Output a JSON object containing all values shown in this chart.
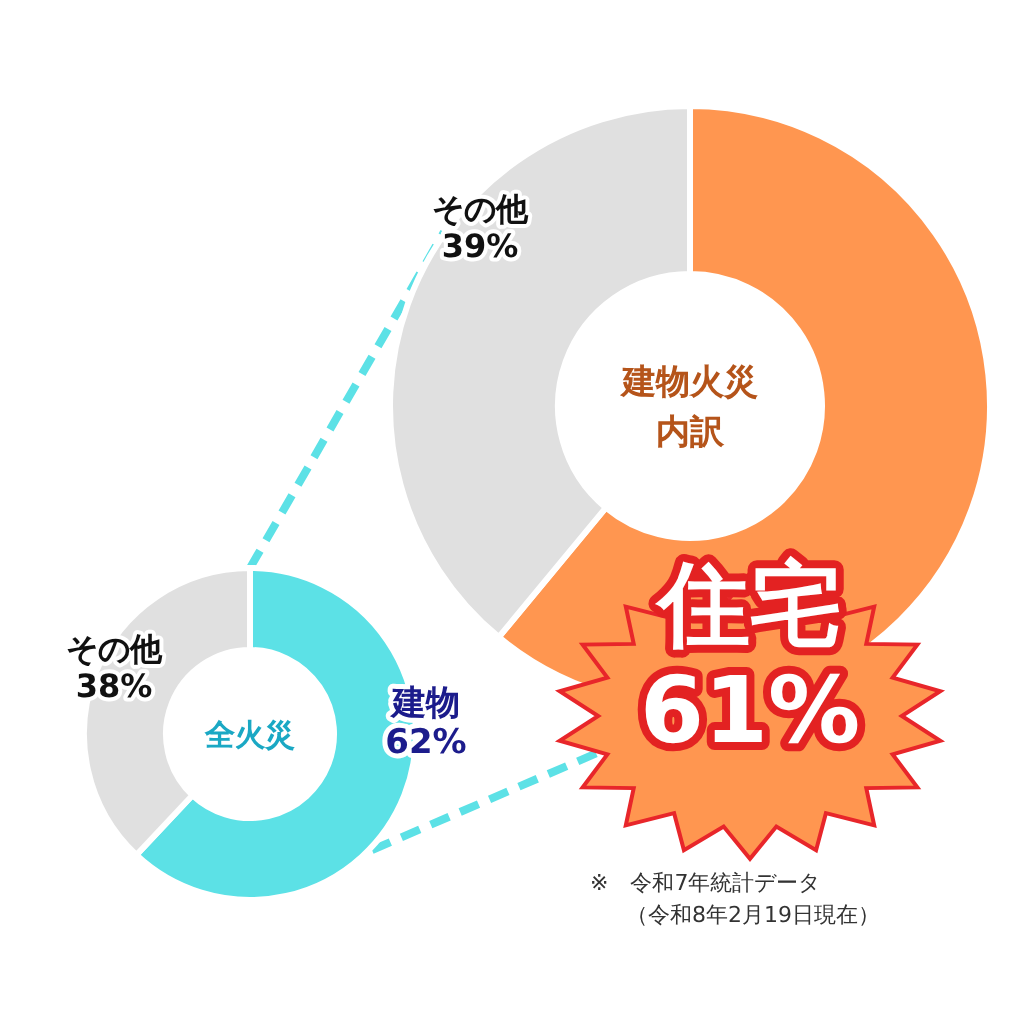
{
  "chart_data": [
    {
      "type": "donut",
      "title": "全火災",
      "categories": [
        "建物",
        "その他"
      ],
      "values": [
        62,
        38
      ],
      "value_labels": [
        "62%",
        "38%"
      ],
      "colors": [
        "#5ce1e6",
        "#e0e0e0"
      ]
    },
    {
      "type": "donut",
      "title": "建物火災内訳",
      "categories": [
        "住宅",
        "その他"
      ],
      "values": [
        61,
        39
      ],
      "value_labels": [
        "61%",
        "39%"
      ],
      "colors": [
        "#ff9650",
        "#e0e0e0"
      ],
      "annotations": [
        "※　令和7年統計データ",
        "（令和8年2月19日現在）"
      ]
    }
  ]
}
